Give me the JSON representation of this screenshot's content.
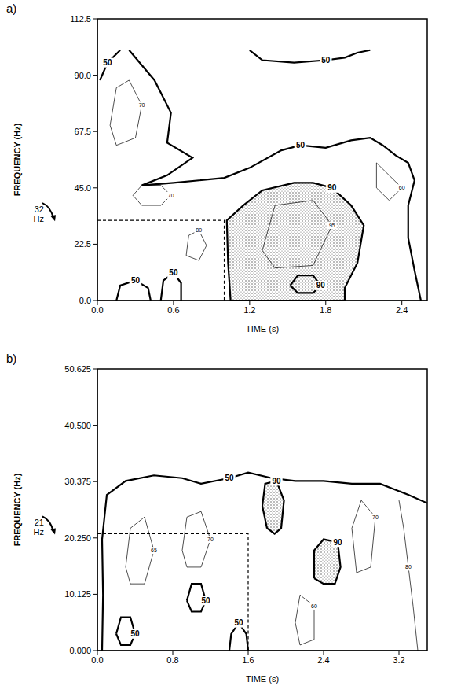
{
  "chart_data": [
    {
      "type": "contour",
      "panel": "a)",
      "x_label": "TIME (s)",
      "y_label": "FREQUENCY (Hz)",
      "xlim": [
        0,
        2.6
      ],
      "xticks": [
        {
          "value": 0,
          "label": "0.0"
        },
        0.6,
        1.2,
        1.8,
        2.4
      ],
      "ylim": [
        0,
        112.5
      ],
      "yticks": [
        {
          "value": 0,
          "label": "0.0"
        },
        22.5,
        {
          "value": 45,
          "label": "45.0"
        },
        67.5,
        {
          "value": 90,
          "label": "90.0"
        },
        112.5
      ],
      "major_levels": [
        50,
        90
      ],
      "shaded_above": 90,
      "annotation": {
        "text": "32 Hz",
        "x": 1.0,
        "y": 32
      },
      "contours": [
        {
          "level": 90,
          "x": [
            1.03,
            1.02,
            1.15,
            1.3,
            1.55,
            1.7,
            1.85,
            2.0,
            2.1,
            2.05,
            1.95,
            1.95,
            1.05,
            1.03
          ],
          "y": [
            15,
            32,
            38,
            44,
            47,
            47,
            45,
            38,
            30,
            15,
            5,
            0,
            0,
            15
          ]
        },
        {
          "level": 90,
          "x": [
            1.52,
            1.58,
            1.7,
            1.76,
            1.7,
            1.58,
            1.52
          ],
          "y": [
            6,
            10,
            10,
            6,
            3,
            3,
            6
          ]
        },
        {
          "level": 50,
          "x": [
            0.25,
            0.45,
            0.58,
            0.55,
            0.75,
            0.55,
            0.35,
            0.6,
            1.0,
            1.2,
            1.45,
            1.6,
            1.8,
            2.0,
            2.15,
            2.25,
            2.35,
            2.45,
            2.5,
            2.45,
            2.45,
            2.5,
            2.55
          ],
          "y": [
            100,
            88,
            75,
            63,
            57,
            50,
            46,
            47,
            49,
            53,
            60,
            62,
            61,
            64,
            65,
            62,
            58,
            55,
            48,
            38,
            25,
            12,
            0
          ]
        },
        {
          "level": 50,
          "x": [
            0.02,
            0.08,
            0.18
          ],
          "y": [
            88,
            95,
            100
          ]
        },
        {
          "level": 50,
          "x": [
            1.2,
            1.3,
            1.55,
            1.8,
            1.95,
            2.05,
            2.15
          ],
          "y": [
            100,
            96,
            95,
            96,
            97,
            99,
            100
          ]
        },
        {
          "level": 50,
          "x": [
            0.15,
            0.18,
            0.3,
            0.4,
            0.42
          ],
          "y": [
            0,
            6,
            8,
            5,
            0
          ]
        },
        {
          "level": 50,
          "x": [
            0.5,
            0.52,
            0.6,
            0.66,
            0.66
          ],
          "y": [
            0,
            8,
            11,
            7,
            0
          ]
        },
        {
          "level": 70,
          "x": [
            0.28,
            0.35,
            0.5,
            0.58,
            0.5,
            0.35,
            0.28
          ],
          "y": [
            42,
            46,
            46,
            42,
            38,
            38,
            42
          ]
        },
        {
          "level": 70,
          "x": [
            0.1,
            0.15,
            0.25,
            0.35,
            0.3,
            0.15,
            0.1
          ],
          "y": [
            70,
            85,
            88,
            78,
            65,
            62,
            70
          ]
        },
        {
          "level": 80,
          "x": [
            0.7,
            0.72,
            0.8,
            0.86,
            0.8,
            0.7
          ],
          "y": [
            18,
            26,
            28,
            22,
            16,
            18
          ]
        },
        {
          "level": 60,
          "x": [
            2.2,
            2.3,
            2.4,
            2.3,
            2.2,
            2.2
          ],
          "y": [
            55,
            50,
            45,
            40,
            45,
            55
          ]
        },
        {
          "level": 95,
          "x": [
            1.3,
            1.4,
            1.7,
            1.85,
            1.7,
            1.4,
            1.3
          ],
          "y": [
            20,
            38,
            40,
            30,
            14,
            13,
            20
          ]
        }
      ]
    },
    {
      "type": "contour",
      "panel": "b)",
      "x_label": "TIME (s)",
      "y_label": "FREQUENCY (Hz)",
      "xlim": [
        0,
        3.5
      ],
      "xticks": [
        {
          "value": 0,
          "label": "0.0"
        },
        0.8,
        1.6,
        2.4,
        3.2
      ],
      "ylim": [
        0,
        50.625
      ],
      "yticks": [
        {
          "value": 0,
          "label": "0.000"
        },
        10.125,
        {
          "value": 20.25,
          "label": "20.250"
        },
        30.375,
        {
          "value": 40.5,
          "label": "40.500"
        },
        50.625
      ],
      "major_levels": [
        50,
        90
      ],
      "shaded_above": 90,
      "annotation": {
        "text": "21 Hz",
        "x": 1.6,
        "y": 21
      },
      "contours": [
        {
          "level": 90,
          "x": [
            1.8,
            1.75,
            1.78,
            1.9,
            1.98,
            1.95,
            1.88,
            1.8
          ],
          "y": [
            22,
            26,
            30,
            30.5,
            27,
            22,
            21,
            22
          ]
        },
        {
          "level": 90,
          "x": [
            2.3,
            2.3,
            2.4,
            2.55,
            2.58,
            2.52,
            2.4,
            2.3
          ],
          "y": [
            13,
            18,
            20,
            19.5,
            15,
            12,
            12,
            13
          ]
        },
        {
          "level": 50,
          "x": [
            0.05,
            0.06,
            0.05,
            0.1,
            0.3,
            0.6,
            0.9,
            1.1,
            1.4,
            1.6,
            1.85,
            2.1,
            2.4,
            2.7,
            3.0,
            3.3,
            3.5
          ],
          "y": [
            0,
            10,
            20,
            28,
            30.5,
            31.5,
            31,
            30,
            31,
            32,
            31,
            30.5,
            30.5,
            30,
            30,
            28,
            26.5
          ]
        },
        {
          "level": 50,
          "x": [
            0.2,
            0.25,
            0.35,
            0.4,
            0.35,
            0.25,
            0.2
          ],
          "y": [
            3,
            6,
            6,
            3,
            1,
            1,
            3
          ]
        },
        {
          "level": 50,
          "x": [
            0.95,
            1.0,
            1.1,
            1.15,
            1.1,
            1.0,
            0.95
          ],
          "y": [
            9,
            12,
            12,
            9,
            7,
            7,
            9
          ]
        },
        {
          "level": 50,
          "x": [
            1.4,
            1.42,
            1.5,
            1.58,
            1.6
          ],
          "y": [
            0,
            3,
            5,
            3,
            0
          ]
        },
        {
          "level": 80,
          "x": [
            3.2,
            3.25,
            3.3,
            3.35,
            3.4
          ],
          "y": [
            27,
            22,
            15,
            8,
            0
          ]
        },
        {
          "level": 70,
          "x": [
            0.9,
            0.95,
            1.1,
            1.2,
            1.1,
            0.95,
            0.9
          ],
          "y": [
            18,
            24,
            25,
            20,
            15,
            15,
            18
          ]
        },
        {
          "level": 65,
          "x": [
            0.3,
            0.35,
            0.5,
            0.6,
            0.5,
            0.35,
            0.3
          ],
          "y": [
            15,
            22,
            24,
            18,
            12,
            12,
            15
          ]
        },
        {
          "level": 60,
          "x": [
            2.1,
            2.15,
            2.3,
            2.3,
            2.15,
            2.1
          ],
          "y": [
            5,
            10,
            8,
            2,
            1,
            5
          ]
        },
        {
          "level": 70,
          "x": [
            2.7,
            2.8,
            2.95,
            2.9,
            2.75,
            2.7
          ],
          "y": [
            22,
            27,
            24,
            15,
            14,
            22
          ]
        }
      ]
    }
  ]
}
